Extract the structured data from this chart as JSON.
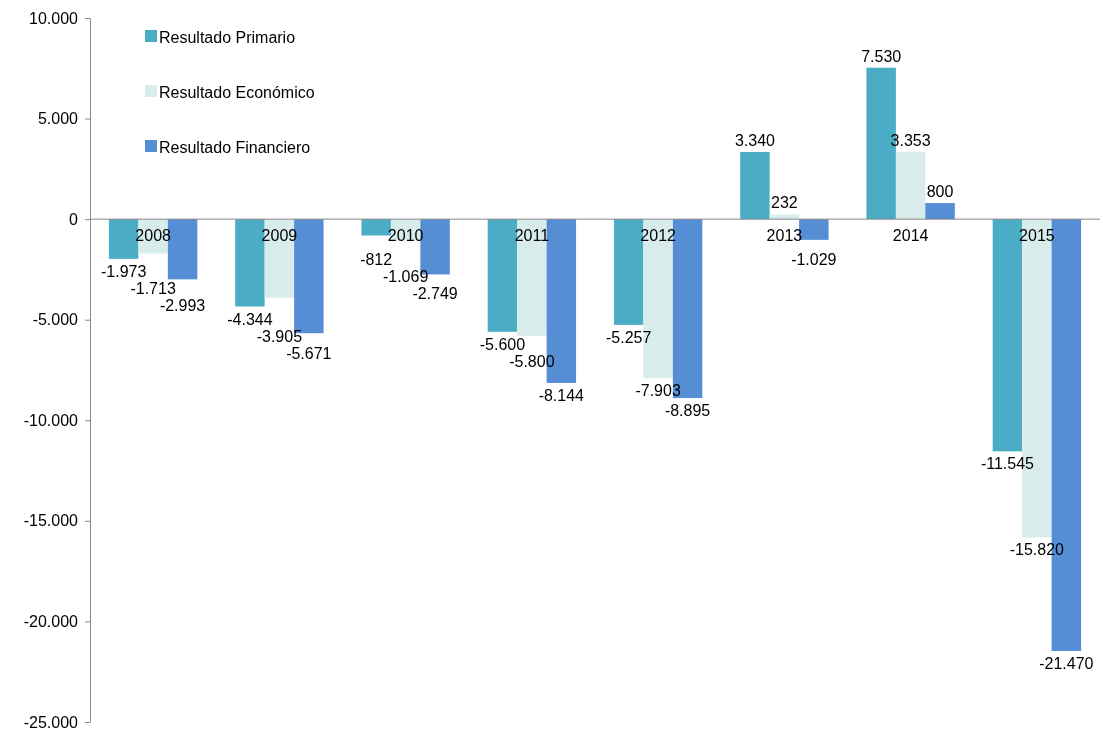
{
  "chart_data": {
    "type": "bar",
    "categories": [
      "2008",
      "2009",
      "2010",
      "2011",
      "2012",
      "2013",
      "2014",
      "2015"
    ],
    "series": [
      {
        "name": "Resultado Primario",
        "color": "#4bacc6",
        "values": [
          -1973,
          -4344,
          -812,
          -5600,
          -5257,
          3340,
          7530,
          -11545
        ],
        "value_labels": [
          "-1.973",
          "-4.344",
          "-812",
          "-5.600",
          "-5.257",
          "3.340",
          "7.530",
          "-11.545"
        ]
      },
      {
        "name": "Resultado Económico",
        "color": "#d9ecec",
        "values": [
          -1713,
          -3905,
          -1069,
          -5800,
          -7903,
          232,
          3353,
          -15820
        ],
        "value_labels": [
          "-1.713",
          "-3.905",
          "-1.069",
          "-5.800",
          "-7.903",
          "232",
          "3.353",
          "-15.820"
        ]
      },
      {
        "name": "Resultado Financiero",
        "color": "#558ed5",
        "values": [
          -2993,
          -5671,
          -2749,
          -8144,
          -8895,
          -1029,
          800,
          -21470
        ],
        "value_labels": [
          "-2.993",
          "-5.671",
          "-2.749",
          "-8.144",
          "-8.895",
          "-1.029",
          "800",
          "-21.470"
        ]
      }
    ],
    "ylim": [
      -25000,
      10000
    ],
    "yticks": [
      {
        "value": -25000,
        "label": "-25.000"
      },
      {
        "value": -20000,
        "label": "-20.000"
      },
      {
        "value": -15000,
        "label": "-15.000"
      },
      {
        "value": -10000,
        "label": "-10.000"
      },
      {
        "value": -5000,
        "label": "-5.000"
      },
      {
        "value": 0,
        "label": "0"
      },
      {
        "value": 5000,
        "label": "5.000"
      },
      {
        "value": 10000,
        "label": "10.000"
      }
    ],
    "grid": false,
    "legend": "top left"
  }
}
